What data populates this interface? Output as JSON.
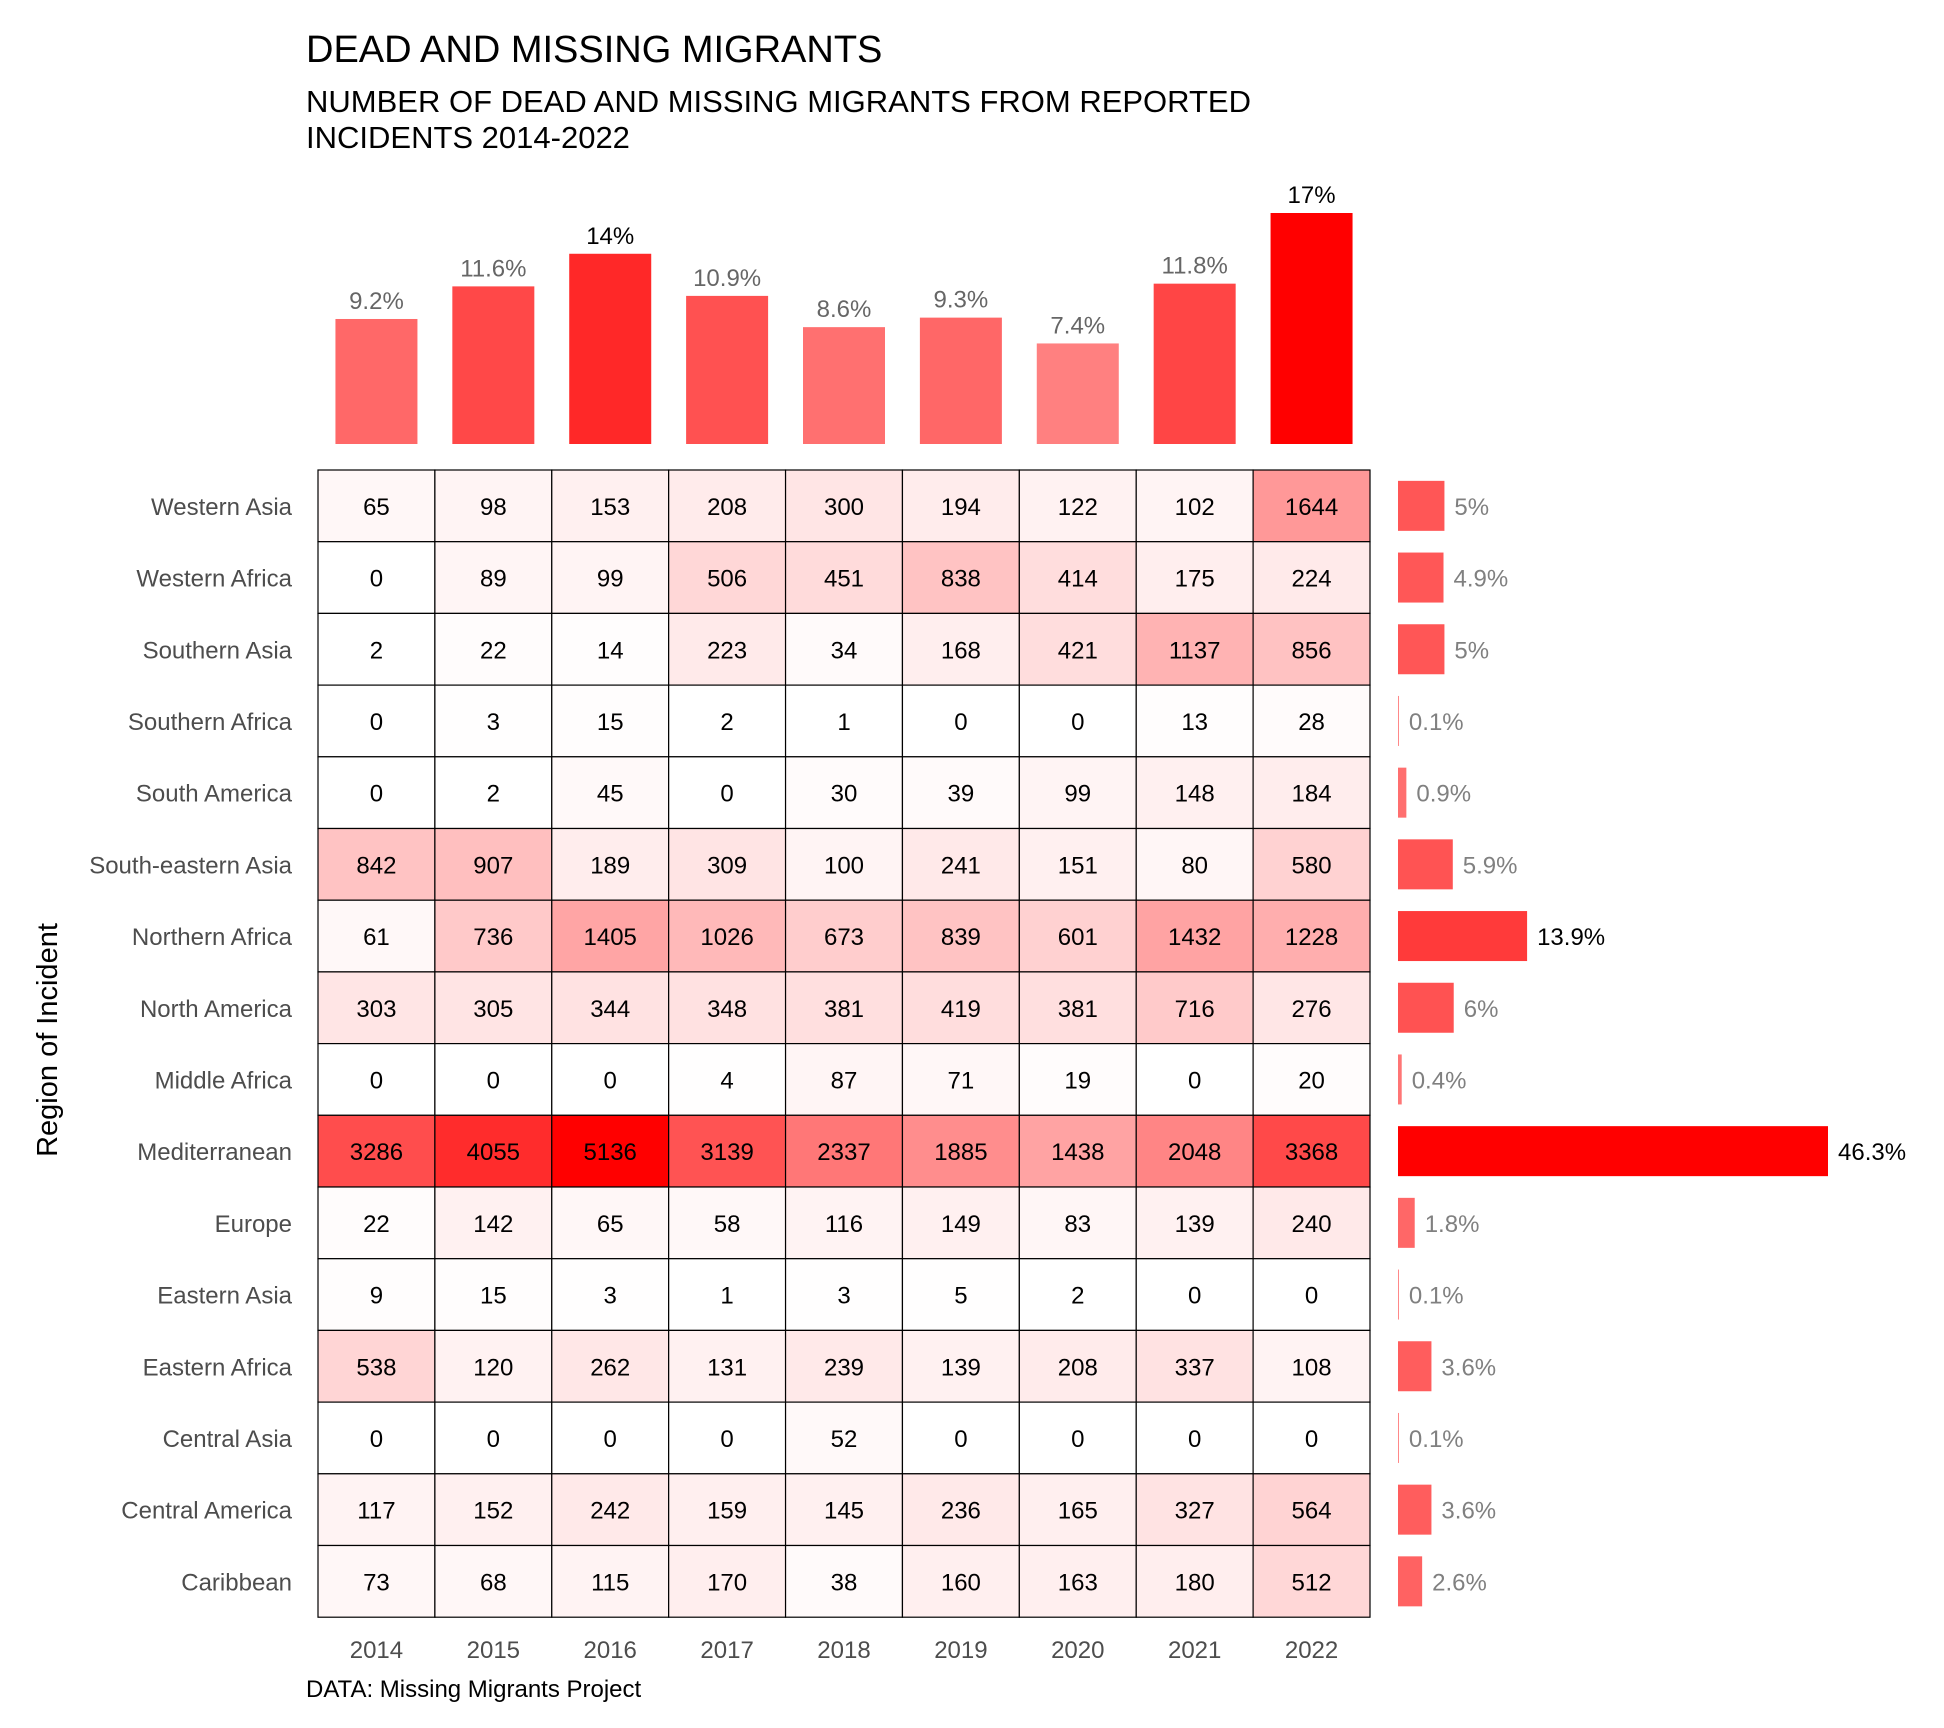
{
  "chart_data": {
    "type": "heatmap",
    "title": "DEAD AND MISSING MIGRANTS",
    "subtitle_lines": [
      "NUMBER OF DEAD AND MISSING MIGRANTS FROM REPORTED",
      "INCIDENTS 2014-2022"
    ],
    "caption": "DATA: Missing Migrants Project",
    "ylabel": "Region of Incident",
    "xlabel": "",
    "colors": {
      "low": "#ffffff",
      "high": "#ff0000",
      "cell_border": "#000000",
      "text": "#000000"
    },
    "years": [
      "2014",
      "2015",
      "2016",
      "2017",
      "2018",
      "2019",
      "2020",
      "2021",
      "2022"
    ],
    "regions": [
      "Western Asia",
      "Western Africa",
      "Southern Asia",
      "Southern Africa",
      "South America",
      "South-eastern Asia",
      "Northern Africa",
      "North America",
      "Middle Africa",
      "Mediterranean",
      "Europe",
      "Eastern Asia",
      "Eastern Africa",
      "Central Asia",
      "Central America",
      "Caribbean"
    ],
    "values": [
      [
        65,
        98,
        153,
        208,
        300,
        194,
        122,
        102,
        1644
      ],
      [
        0,
        89,
        99,
        506,
        451,
        838,
        414,
        175,
        224
      ],
      [
        2,
        22,
        14,
        223,
        34,
        168,
        421,
        1137,
        856
      ],
      [
        0,
        3,
        15,
        2,
        1,
        0,
        0,
        13,
        28
      ],
      [
        0,
        2,
        45,
        0,
        30,
        39,
        99,
        148,
        184
      ],
      [
        842,
        907,
        189,
        309,
        100,
        241,
        151,
        80,
        580
      ],
      [
        61,
        736,
        1405,
        1026,
        673,
        839,
        601,
        1432,
        1228
      ],
      [
        303,
        305,
        344,
        348,
        381,
        419,
        381,
        716,
        276
      ],
      [
        0,
        0,
        0,
        4,
        87,
        71,
        19,
        0,
        20
      ],
      [
        3286,
        4055,
        5136,
        3139,
        2337,
        1885,
        1438,
        2048,
        3368
      ],
      [
        22,
        142,
        65,
        58,
        116,
        149,
        83,
        139,
        240
      ],
      [
        9,
        15,
        3,
        1,
        3,
        5,
        2,
        0,
        0
      ],
      [
        538,
        120,
        262,
        131,
        239,
        139,
        208,
        337,
        108
      ],
      [
        0,
        0,
        0,
        0,
        52,
        0,
        0,
        0,
        0
      ],
      [
        117,
        152,
        242,
        159,
        145,
        236,
        165,
        327,
        564
      ],
      [
        73,
        68,
        115,
        170,
        38,
        160,
        163,
        180,
        512
      ]
    ],
    "year_share": {
      "values": [
        9.2,
        11.6,
        14,
        10.9,
        8.6,
        9.3,
        7.4,
        11.8,
        17
      ],
      "labels": [
        "9.2%",
        "11.6%",
        "14%",
        "10.9%",
        "8.6%",
        "9.3%",
        "7.4%",
        "11.8%",
        "17%"
      ]
    },
    "region_share": {
      "values": [
        5,
        4.9,
        5,
        0.1,
        0.9,
        5.9,
        13.9,
        6,
        0.4,
        46.3,
        1.8,
        0.1,
        3.6,
        0.1,
        3.6,
        2.6
      ],
      "labels": [
        "5%",
        "4.9%",
        "5%",
        "0.1%",
        "0.9%",
        "5.9%",
        "13.9%",
        "6%",
        "0.4%",
        "46.3%",
        "1.8%",
        "0.1%",
        "3.6%",
        "0.1%",
        "3.6%",
        "2.6%"
      ]
    }
  }
}
